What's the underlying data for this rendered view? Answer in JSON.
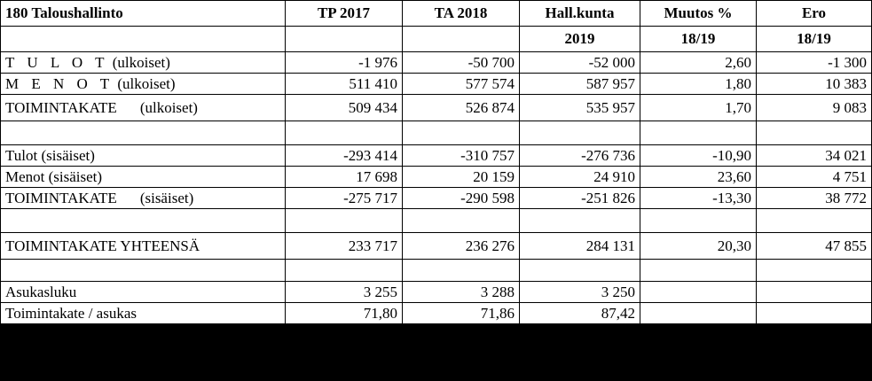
{
  "header": {
    "title": "180 Taloushallinto",
    "col_tp": "TP 2017",
    "col_ta": "TA 2018",
    "col_hall": "Hall.kunta",
    "col_hall_sub": "2019",
    "col_muutos": "Muutos %",
    "col_muutos_sub": "18/19",
    "col_ero": "Ero",
    "col_ero_sub": "18/19"
  },
  "rows": [
    {
      "label_a": "T U L O T",
      "label_b": " (ulkoiset)",
      "tp": "-1 976",
      "ta": "-50 700",
      "hall": "-52 000",
      "muutos": "2,60",
      "ero": "-1 300"
    },
    {
      "label_a": "M E N O T",
      "label_b": " (ulkoiset)",
      "tp": "511 410",
      "ta": "577 574",
      "hall": "587 957",
      "muutos": "1,80",
      "ero": "10 383"
    },
    {
      "label_a": "TOIMINTAKATE",
      "label_b": "(ulkoiset)",
      "tp": "509 434",
      "ta": "526 874",
      "hall": "535 957",
      "muutos": "1,70",
      "ero": "9 083"
    },
    {
      "label": "Tulot (sisäiset)",
      "tp": "-293 414",
      "ta": "-310 757",
      "hall": "-276 736",
      "muutos": "-10,90",
      "ero": "34 021"
    },
    {
      "label": "Menot (sisäiset)",
      "tp": "17 698",
      "ta": "20 159",
      "hall": "24 910",
      "muutos": "23,60",
      "ero": "4 751"
    },
    {
      "label_a": "TOIMINTAKATE",
      "label_b": "(sisäiset)",
      "tp": "-275 717",
      "ta": "-290 598",
      "hall": "-251 826",
      "muutos": "-13,30",
      "ero": "38 772"
    },
    {
      "label": "TOIMINTAKATE YHTEENSÄ",
      "tp": "233 717",
      "ta": "236 276",
      "hall": "284 131",
      "muutos": "20,30",
      "ero": "47 855"
    },
    {
      "label": "Asukasluku",
      "tp": "3 255",
      "ta": "3 288",
      "hall": "3 250",
      "muutos": "",
      "ero": ""
    },
    {
      "label": "Toimintakate / asukas",
      "tp": "71,80",
      "ta": "71,86",
      "hall": "87,42",
      "muutos": "",
      "ero": ""
    }
  ]
}
